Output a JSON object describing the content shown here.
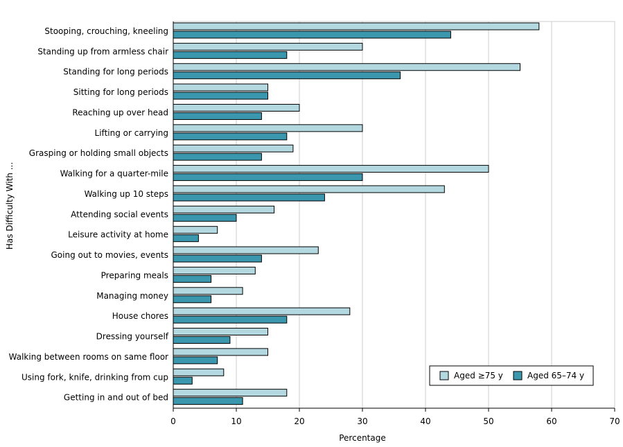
{
  "chart_data": {
    "type": "bar",
    "orientation": "horizontal",
    "xlabel": "Percentage",
    "ylabel": "Has Difficulty With ...",
    "xlim": [
      0,
      70
    ],
    "xticks": [
      0,
      10,
      20,
      30,
      40,
      50,
      60,
      70
    ],
    "grid": true,
    "legend_placement": "bottom-right",
    "categories": [
      "Stooping, crouching, kneeling",
      "Standing up from armless chair",
      "Standing for long periods",
      "Sitting for long periods",
      "Reaching up over head",
      "Lifting or carrying",
      "Grasping or holding small objects",
      "Walking for a quarter-mile",
      "Walking up 10 steps",
      "Attending social events",
      "Leisure activity at home",
      "Going out to movies, events",
      "Preparing meals",
      "Managing money",
      "House chores",
      "Dressing yourself",
      "Walking between rooms on same floor",
      "Using fork, knife, drinking from cup",
      "Getting in and out of bed"
    ],
    "series": [
      {
        "name": "Aged ≥75 y",
        "color": "#b4d8e0",
        "values": [
          58,
          30,
          55,
          15,
          20,
          30,
          19,
          50,
          43,
          16,
          7,
          23,
          13,
          11,
          28,
          15,
          15,
          8,
          18
        ]
      },
      {
        "name": "Aged 65–74 y",
        "color": "#3a97ad",
        "values": [
          44,
          18,
          36,
          15,
          14,
          18,
          14,
          30,
          24,
          10,
          4,
          14,
          6,
          6,
          18,
          9,
          7,
          3,
          11
        ]
      }
    ]
  }
}
